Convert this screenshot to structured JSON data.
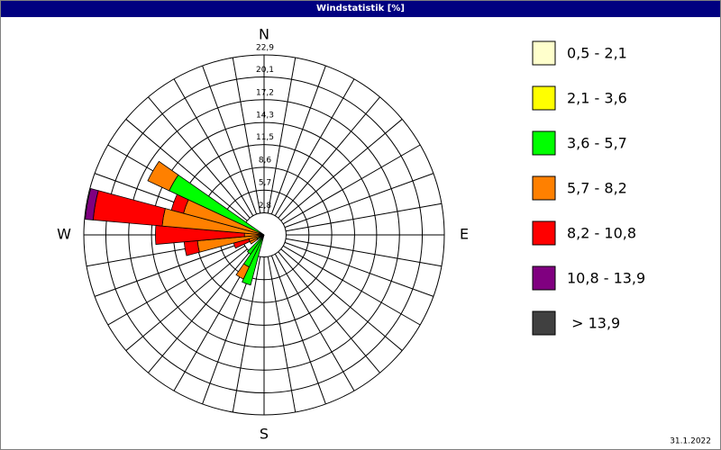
{
  "chart_data": {
    "type": "windrose",
    "title": "Windstatistik [%]",
    "date": "31.1.2022",
    "x": [
      200,
      210,
      220,
      230,
      240,
      250,
      260,
      270,
      280,
      290,
      300
    ],
    "xticks": [
      {
        "value": 0,
        "label": "N"
      },
      {
        "value": 90,
        "label": "E"
      },
      {
        "value": 180,
        "label": "S"
      },
      {
        "value": 270,
        "label": "W"
      }
    ],
    "ylim": [
      0,
      22.9
    ],
    "yticks": [
      {
        "value": 2.8,
        "label": "2,8"
      },
      {
        "value": 5.7,
        "label": "5,7"
      },
      {
        "value": 8.6,
        "label": "8,6"
      },
      {
        "value": 11.5,
        "label": "11,5"
      },
      {
        "value": 14.3,
        "label": "14,3"
      },
      {
        "value": 17.2,
        "label": "17,2"
      },
      {
        "value": 20.1,
        "label": "20,1"
      },
      {
        "value": 22.9,
        "label": "22,9"
      }
    ],
    "series": [
      {
        "name": "0,5 - 2,1",
        "color": "#ffffcc",
        "values": [
          0,
          0,
          0,
          0,
          0,
          0,
          0,
          0,
          0,
          0,
          0
        ]
      },
      {
        "name": "2,1 - 3,6",
        "color": "#ffff00",
        "values": [
          0,
          0,
          0,
          0,
          0,
          0,
          0,
          0,
          0,
          0,
          0
        ]
      },
      {
        "name": "3,6 - 5,7",
        "color": "#00ff00",
        "values": [
          6.6,
          4.5,
          3.0,
          0,
          1.0,
          0,
          0,
          0,
          0,
          0,
          13.3
        ]
      },
      {
        "name": "5,7 - 8,2",
        "color": "#ff8000",
        "values": [
          0,
          1.7,
          0,
          0,
          1.0,
          2.0,
          8.5,
          2.5,
          13.0,
          10.6,
          3.0
        ]
      },
      {
        "name": "8,2 - 10,8",
        "color": "#ff0000",
        "values": [
          0,
          0,
          0,
          0,
          0,
          2.0,
          1.7,
          11.3,
          8.8,
          1.6,
          0
        ]
      },
      {
        "name": "10,8 - 13,9",
        "color": "#800080",
        "values": [
          0,
          0,
          0,
          0,
          0,
          0,
          0,
          0,
          1.0,
          0,
          0
        ]
      },
      {
        "name": " > 13,9",
        "color": "#404040",
        "values": [
          0,
          0,
          0,
          0,
          0,
          0,
          0,
          0,
          0,
          0,
          0
        ]
      }
    ]
  }
}
